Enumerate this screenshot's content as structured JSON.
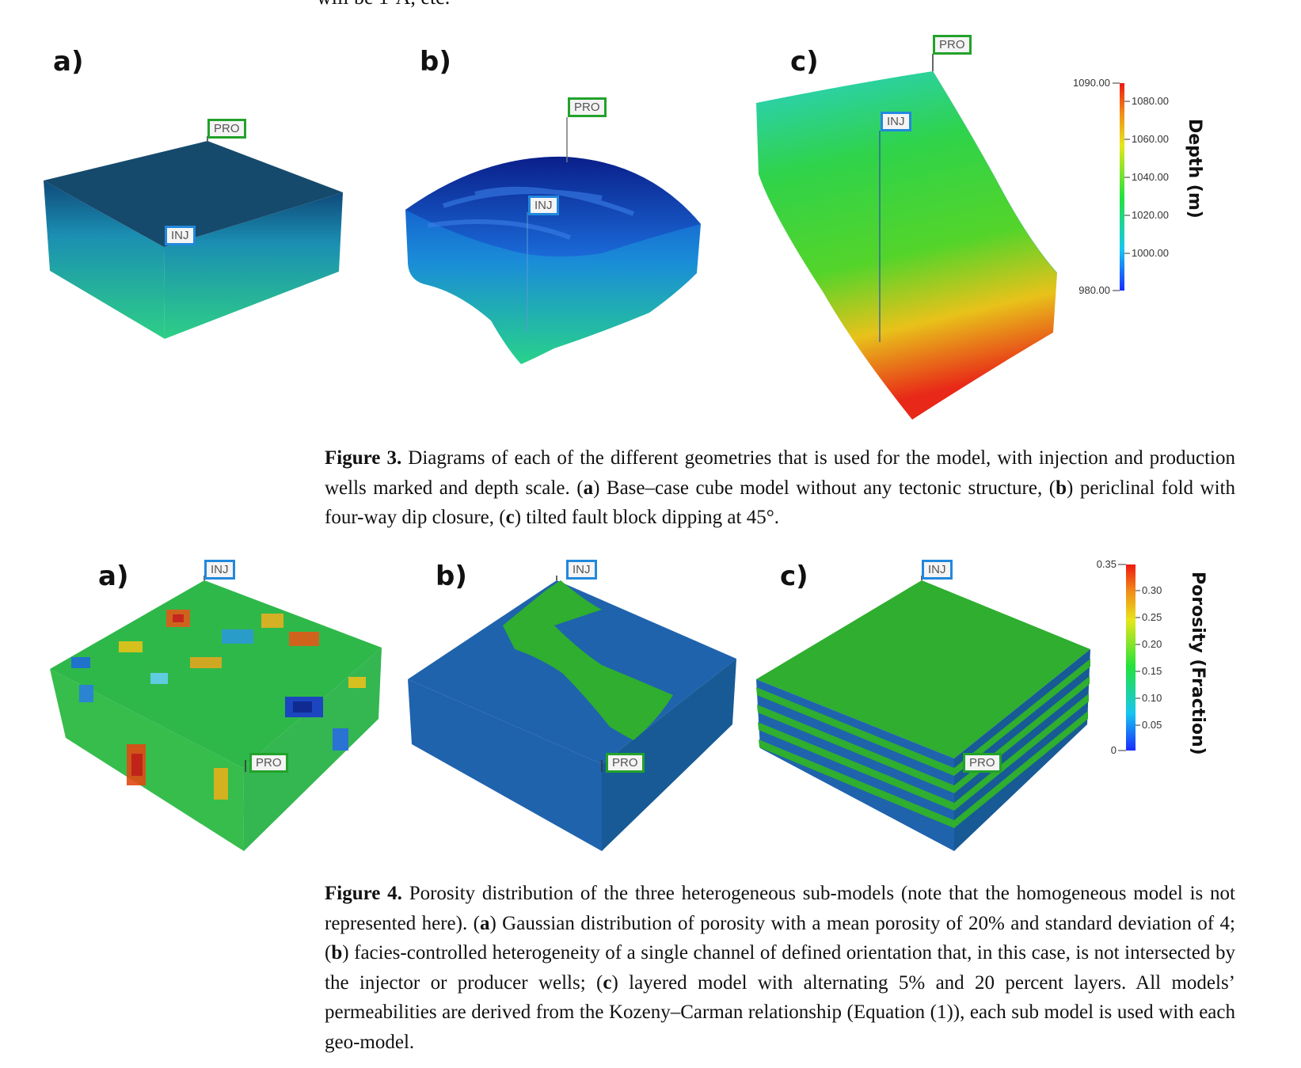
{
  "top_snippet": "will be 1-A, etc.",
  "figure3": {
    "panel_labels": [
      "a)",
      "b)",
      "c)"
    ],
    "flags": {
      "pro": "PRO",
      "inj": "INJ"
    },
    "scale": {
      "title": "Depth (m)",
      "max": "1090.00",
      "min": "980.00",
      "ticks": [
        "1080.00",
        "1060.00",
        "1040.00",
        "1020.00",
        "1000.00"
      ]
    },
    "caption": {
      "label": "Figure 3.",
      "text_1": " Diagrams of each of the different geometries that is used for the model, with injection and production wells marked and depth scale. (",
      "a": "a",
      "text_2": ") Base–case cube model without any tectonic structure, (",
      "b": "b",
      "text_3": ") periclinal fold with four-way dip closure, (",
      "c": "c",
      "text_4": ") tilted fault block dipping at 45°."
    }
  },
  "figure4": {
    "panel_labels": [
      "a)",
      "b)",
      "c)"
    ],
    "flags": {
      "pro": "PRO",
      "inj": "INJ"
    },
    "scale": {
      "title": "Porosity (Fraction)",
      "max": "0.35",
      "min": "0",
      "ticks": [
        "0.30",
        "0.25",
        "0.20",
        "0.15",
        "0.10",
        "0.05"
      ]
    },
    "caption": {
      "label": "Figure 4.",
      "text_1": " Porosity distribution of the three heterogeneous sub-models (note that the homogeneous model is not represented here). (",
      "a": "a",
      "text_2": ") Gaussian distribution of porosity with a mean porosity of 20% and standard deviation of 4; (",
      "b": "b",
      "text_3": ") facies-controlled heterogeneity of a single channel of defined orientation that, in this case, is not intersected by the injector or producer wells; (",
      "c": "c",
      "text_4": ") layered model with alternating 5% and 20 percent layers. All models’ permeabilities are derived from the Kozeny–Carman relationship (Equation (1)), each sub model is used with each geo-model."
    }
  },
  "colors": {
    "blue": "#1133cc",
    "green": "#22bb22",
    "red": "#ee2211",
    "pro_border": "#22a22a",
    "inj_border": "#2288dd"
  }
}
